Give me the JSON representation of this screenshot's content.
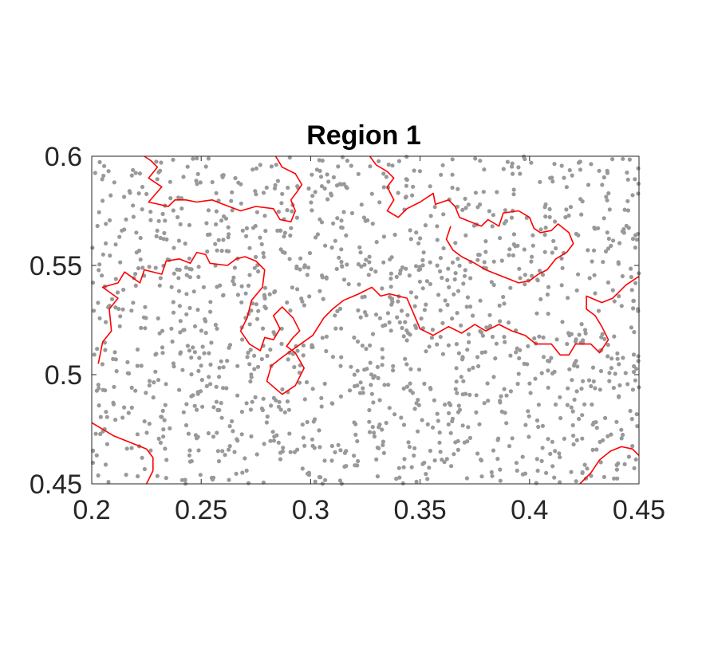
{
  "chart_data": {
    "type": "scatter",
    "title": "Region 1",
    "xlabel": "",
    "ylabel": "",
    "xlim": [
      0.2,
      0.45
    ],
    "ylim": [
      0.45,
      0.6
    ],
    "xticks": [
      0.2,
      0.25,
      0.3,
      0.35,
      0.4,
      0.45
    ],
    "xtick_labels": [
      "0.2",
      "0.25",
      "0.3",
      "0.35",
      "0.4",
      "0.45"
    ],
    "yticks": [
      0.45,
      0.5,
      0.55,
      0.6
    ],
    "ytick_labels": [
      "0.45",
      "0.5",
      "0.55",
      "0.6"
    ],
    "grid": false,
    "legend": "none",
    "colors": {
      "points": "#999999",
      "boundary": "#ff0000",
      "axes": "#262626"
    },
    "points": {
      "count": 1400,
      "distribution": "approximately uniform random over the axis range"
    },
    "boundaries": [
      [
        [
          0.203,
          0.505
        ],
        [
          0.205,
          0.515
        ],
        [
          0.209,
          0.52
        ],
        [
          0.208,
          0.53
        ],
        [
          0.212,
          0.535
        ],
        [
          0.205,
          0.54
        ],
        [
          0.212,
          0.542
        ],
        [
          0.215,
          0.547
        ],
        [
          0.222,
          0.542
        ],
        [
          0.224,
          0.548
        ],
        [
          0.232,
          0.546
        ],
        [
          0.234,
          0.552
        ],
        [
          0.24,
          0.553
        ],
        [
          0.245,
          0.551
        ],
        [
          0.248,
          0.556
        ],
        [
          0.252,
          0.555
        ],
        [
          0.254,
          0.551
        ],
        [
          0.262,
          0.55
        ],
        [
          0.266,
          0.553
        ],
        [
          0.27,
          0.554
        ],
        [
          0.275,
          0.552
        ],
        [
          0.279,
          0.548
        ],
        [
          0.278,
          0.54
        ],
        [
          0.273,
          0.534
        ],
        [
          0.271,
          0.526
        ],
        [
          0.268,
          0.52
        ],
        [
          0.272,
          0.514
        ],
        [
          0.277,
          0.511
        ],
        [
          0.279,
          0.517
        ],
        [
          0.283,
          0.516
        ],
        [
          0.286,
          0.521
        ],
        [
          0.283,
          0.527
        ],
        [
          0.287,
          0.531
        ],
        [
          0.292,
          0.526
        ],
        [
          0.295,
          0.52
        ],
        [
          0.292,
          0.517
        ],
        [
          0.289,
          0.513
        ],
        [
          0.293,
          0.51
        ],
        [
          0.297,
          0.503
        ],
        [
          0.293,
          0.495
        ],
        [
          0.287,
          0.491
        ],
        [
          0.28,
          0.497
        ],
        [
          0.282,
          0.504
        ],
        [
          0.287,
          0.508
        ],
        [
          0.301,
          0.518
        ],
        [
          0.306,
          0.526
        ],
        [
          0.31,
          0.53
        ],
        [
          0.315,
          0.534
        ],
        [
          0.322,
          0.537
        ],
        [
          0.328,
          0.54
        ],
        [
          0.332,
          0.536
        ],
        [
          0.336,
          0.537
        ],
        [
          0.344,
          0.535
        ],
        [
          0.347,
          0.528
        ],
        [
          0.35,
          0.521
        ],
        [
          0.356,
          0.518
        ],
        [
          0.363,
          0.522
        ],
        [
          0.369,
          0.519
        ],
        [
          0.375,
          0.523
        ],
        [
          0.38,
          0.52
        ],
        [
          0.386,
          0.523
        ],
        [
          0.392,
          0.52
        ],
        [
          0.398,
          0.518
        ],
        [
          0.403,
          0.514
        ],
        [
          0.41,
          0.514
        ],
        [
          0.414,
          0.509
        ],
        [
          0.418,
          0.509
        ],
        [
          0.421,
          0.514
        ],
        [
          0.428,
          0.514
        ],
        [
          0.432,
          0.51
        ],
        [
          0.436,
          0.516
        ],
        [
          0.433,
          0.522
        ],
        [
          0.43,
          0.527
        ],
        [
          0.426,
          0.53
        ],
        [
          0.426,
          0.536
        ],
        [
          0.433,
          0.533
        ],
        [
          0.438,
          0.535
        ],
        [
          0.444,
          0.541
        ],
        [
          0.45,
          0.545
        ]
      ],
      [
        [
          0.224,
          0.6
        ],
        [
          0.227,
          0.598
        ],
        [
          0.23,
          0.595
        ],
        [
          0.226,
          0.59
        ],
        [
          0.232,
          0.586
        ],
        [
          0.226,
          0.579
        ],
        [
          0.235,
          0.577
        ],
        [
          0.238,
          0.58
        ],
        [
          0.243,
          0.58
        ],
        [
          0.248,
          0.579
        ],
        [
          0.255,
          0.58
        ],
        [
          0.26,
          0.578
        ],
        [
          0.268,
          0.575
        ],
        [
          0.275,
          0.577
        ],
        [
          0.283,
          0.576
        ],
        [
          0.286,
          0.571
        ],
        [
          0.291,
          0.57
        ],
        [
          0.293,
          0.575
        ],
        [
          0.291,
          0.58
        ],
        [
          0.294,
          0.584
        ],
        [
          0.296,
          0.587
        ],
        [
          0.293,
          0.592
        ],
        [
          0.287,
          0.595
        ],
        [
          0.284,
          0.6
        ]
      ],
      [
        [
          0.327,
          0.6
        ],
        [
          0.33,
          0.596
        ],
        [
          0.335,
          0.593
        ],
        [
          0.338,
          0.59
        ],
        [
          0.335,
          0.586
        ],
        [
          0.338,
          0.58
        ],
        [
          0.335,
          0.575
        ],
        [
          0.34,
          0.572
        ],
        [
          0.344,
          0.576
        ],
        [
          0.35,
          0.579
        ],
        [
          0.356,
          0.583
        ],
        [
          0.357,
          0.578
        ],
        [
          0.363,
          0.58
        ],
        [
          0.366,
          0.577
        ],
        [
          0.368,
          0.572
        ],
        [
          0.373,
          0.57
        ],
        [
          0.378,
          0.568
        ],
        [
          0.381,
          0.571
        ],
        [
          0.386,
          0.568
        ],
        [
          0.388,
          0.574
        ],
        [
          0.395,
          0.575
        ],
        [
          0.4,
          0.572
        ],
        [
          0.402,
          0.567
        ],
        [
          0.405,
          0.565
        ],
        [
          0.41,
          0.566
        ],
        [
          0.413,
          0.569
        ],
        [
          0.418,
          0.565
        ],
        [
          0.42,
          0.56
        ],
        [
          0.417,
          0.556
        ],
        [
          0.412,
          0.553
        ],
        [
          0.408,
          0.548
        ],
        [
          0.404,
          0.546
        ],
        [
          0.4,
          0.543
        ],
        [
          0.395,
          0.542
        ],
        [
          0.39,
          0.544
        ],
        [
          0.385,
          0.546
        ],
        [
          0.38,
          0.548
        ],
        [
          0.375,
          0.551
        ],
        [
          0.369,
          0.554
        ],
        [
          0.365,
          0.557
        ],
        [
          0.362,
          0.562
        ],
        [
          0.364,
          0.568
        ]
      ],
      [
        [
          0.2,
          0.478
        ],
        [
          0.205,
          0.475
        ],
        [
          0.21,
          0.472
        ],
        [
          0.215,
          0.47
        ],
        [
          0.22,
          0.468
        ],
        [
          0.225,
          0.466
        ],
        [
          0.228,
          0.462
        ],
        [
          0.228,
          0.456
        ],
        [
          0.225,
          0.45
        ]
      ],
      [
        [
          0.423,
          0.45
        ],
        [
          0.428,
          0.455
        ],
        [
          0.432,
          0.461
        ],
        [
          0.437,
          0.465
        ],
        [
          0.442,
          0.467
        ],
        [
          0.447,
          0.466
        ],
        [
          0.45,
          0.463
        ]
      ]
    ]
  }
}
